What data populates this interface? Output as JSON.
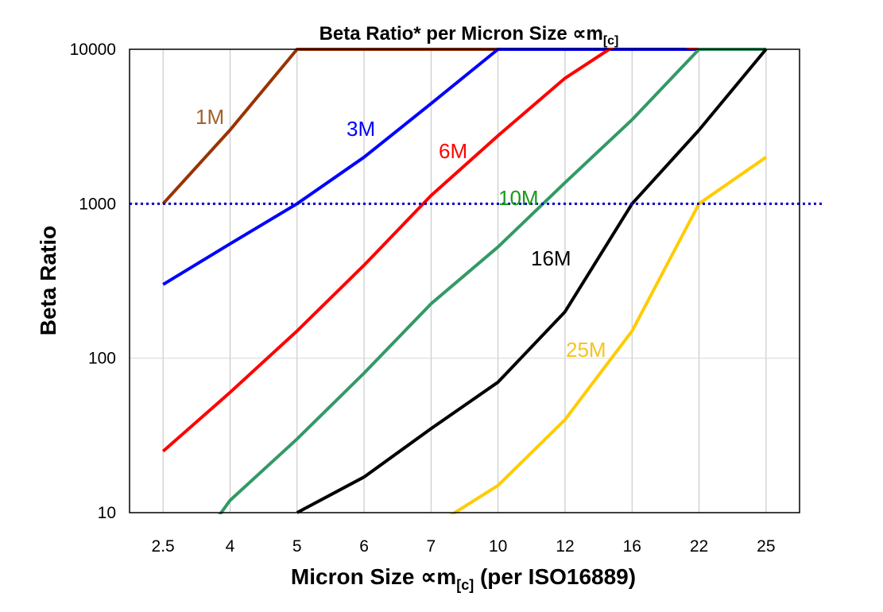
{
  "chart_data": {
    "type": "line",
    "title": {
      "main": "Beta Ratio* per Micron Size ",
      "symbol": "∝m",
      "sub": "[c]"
    },
    "xlabel": {
      "main": "Micron Size ",
      "symbol": "∝m",
      "sub": "[c]",
      "tail": " (per ISO16889)"
    },
    "ylabel": "Beta Ratio",
    "categories": [
      "2.5",
      "4",
      "5",
      "6",
      "7",
      "10",
      "12",
      "16",
      "22",
      "25"
    ],
    "y_scale": "log",
    "ylim": [
      10,
      10000
    ],
    "y_ticks": [
      "10",
      "100",
      "1000",
      "10000"
    ],
    "grid": true,
    "reference_line": {
      "value": 1000,
      "color": "#0000cc",
      "style": "dotted"
    },
    "series": [
      {
        "name": "1M",
        "color": "#993300",
        "label_color": "#a0622d",
        "values": [
          1000,
          3000,
          10000,
          10000,
          10000,
          10000,
          10000,
          10000,
          10000,
          10000
        ]
      },
      {
        "name": "3M",
        "color": "#0000ff",
        "label_color": "#0000ff",
        "values": [
          300,
          550,
          1000,
          2000,
          4450,
          10000,
          10000,
          10000,
          10000,
          10000
        ]
      },
      {
        "name": "6M",
        "color": "#ff0000",
        "label_color": "#ff0000",
        "values": [
          25,
          60,
          150,
          400,
          1130,
          2760,
          6500,
          12500,
          10000,
          10000
        ]
      },
      {
        "name": "10M",
        "color": "#339966",
        "label_color": "#1a9a1a",
        "values": [
          3,
          12,
          30,
          80,
          225,
          525,
          1370,
          3500,
          10000,
          10000
        ]
      },
      {
        "name": "16M",
        "color": "#000000",
        "label_color": "#000000",
        "values": [
          null,
          null,
          10,
          17,
          35,
          70,
          200,
          1000,
          3000,
          10000
        ]
      },
      {
        "name": "25M",
        "color": "#ffcc00",
        "label_color": "#f5c518",
        "values": [
          null,
          null,
          null,
          null,
          8,
          15,
          40,
          150,
          1000,
          2000
        ]
      }
    ]
  }
}
